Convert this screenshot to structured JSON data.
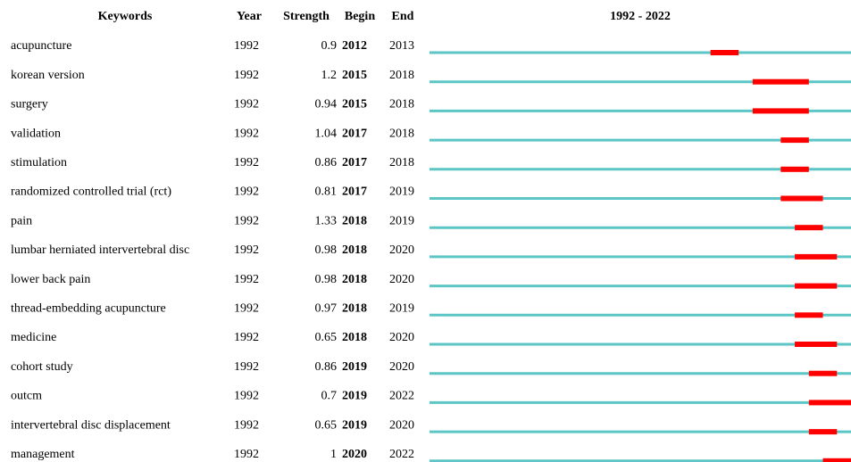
{
  "header": {
    "keywords": "Keywords",
    "year": "Year",
    "strength": "Strength",
    "begin": "Begin",
    "end": "End"
  },
  "timeline": {
    "label": "1992 - 2022",
    "start": 1992,
    "end": 2022
  },
  "rows": [
    {
      "keyword": "acupuncture",
      "year": 1992,
      "strength": 0.9,
      "begin": 2012,
      "end": 2013
    },
    {
      "keyword": "korean version",
      "year": 1992,
      "strength": 1.2,
      "begin": 2015,
      "end": 2018
    },
    {
      "keyword": "surgery",
      "year": 1992,
      "strength": 0.94,
      "begin": 2015,
      "end": 2018
    },
    {
      "keyword": "validation",
      "year": 1992,
      "strength": 1.04,
      "begin": 2017,
      "end": 2018
    },
    {
      "keyword": "stimulation",
      "year": 1992,
      "strength": 0.86,
      "begin": 2017,
      "end": 2018
    },
    {
      "keyword": "randomized controlled trial (rct)",
      "year": 1992,
      "strength": 0.81,
      "begin": 2017,
      "end": 2019
    },
    {
      "keyword": "pain",
      "year": 1992,
      "strength": 1.33,
      "begin": 2018,
      "end": 2019
    },
    {
      "keyword": "lumbar herniated intervertebral disc",
      "year": 1992,
      "strength": 0.98,
      "begin": 2018,
      "end": 2020
    },
    {
      "keyword": "lower back pain",
      "year": 1992,
      "strength": 0.98,
      "begin": 2018,
      "end": 2020
    },
    {
      "keyword": "thread-embedding acupuncture",
      "year": 1992,
      "strength": 0.97,
      "begin": 2018,
      "end": 2019
    },
    {
      "keyword": "medicine",
      "year": 1992,
      "strength": 0.65,
      "begin": 2018,
      "end": 2020
    },
    {
      "keyword": "cohort study",
      "year": 1992,
      "strength": 0.86,
      "begin": 2019,
      "end": 2020
    },
    {
      "keyword": "outcm",
      "year": 1992,
      "strength": 0.7,
      "begin": 2019,
      "end": 2022
    },
    {
      "keyword": "intervertebral disc displacement",
      "year": 1992,
      "strength": 0.65,
      "begin": 2019,
      "end": 2020
    },
    {
      "keyword": "management",
      "year": 1992,
      "strength": 1,
      "begin": 2020,
      "end": 2022
    }
  ]
}
